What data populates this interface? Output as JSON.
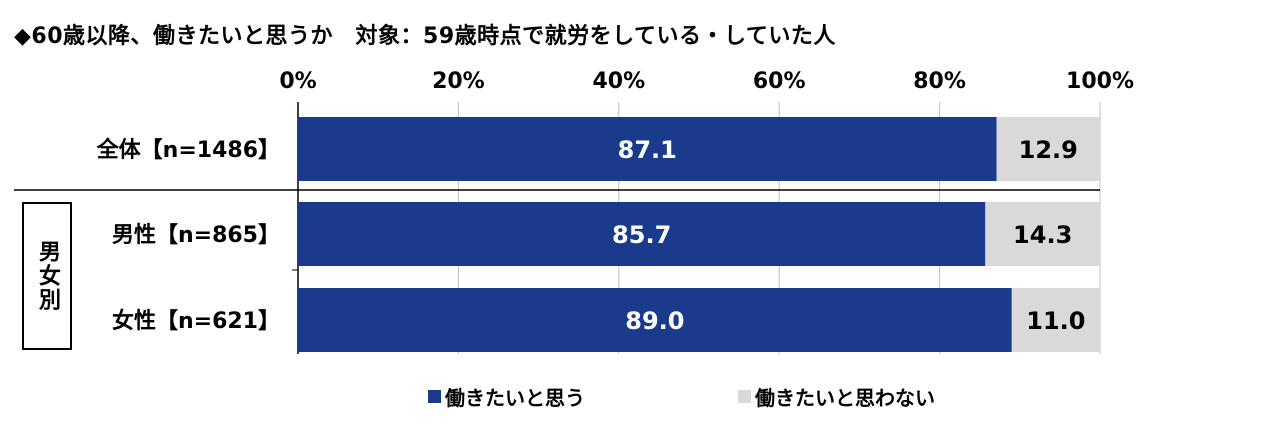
{
  "title": "◆60歳以降、働きたいと思うか　対象：59歳時点で就労をしている・していた人",
  "group_label": "男女別",
  "colors": {
    "want": "#1a3a8c",
    "not_want": "#d9d9d9",
    "grid": "#bfbfbf"
  },
  "chart_data": {
    "type": "bar",
    "orientation": "horizontal",
    "stacked": true,
    "percent": true,
    "xlim": [
      0,
      100
    ],
    "x_ticks": [
      "0%",
      "20%",
      "40%",
      "60%",
      "80%",
      "100%"
    ],
    "categories": [
      "全体【n=1486】",
      "男性【n=865】",
      "女性【n=621】"
    ],
    "series": [
      {
        "name": "働きたいと思う",
        "values": [
          87.1,
          85.7,
          89.0
        ]
      },
      {
        "name": "働きたいと思わない",
        "values": [
          12.9,
          14.3,
          11.0
        ]
      }
    ],
    "value_labels": [
      [
        "87.1",
        "85.7",
        "89.0"
      ],
      [
        "12.9",
        "14.3",
        "11.0"
      ]
    ],
    "legend": "bottom",
    "grid": true
  }
}
